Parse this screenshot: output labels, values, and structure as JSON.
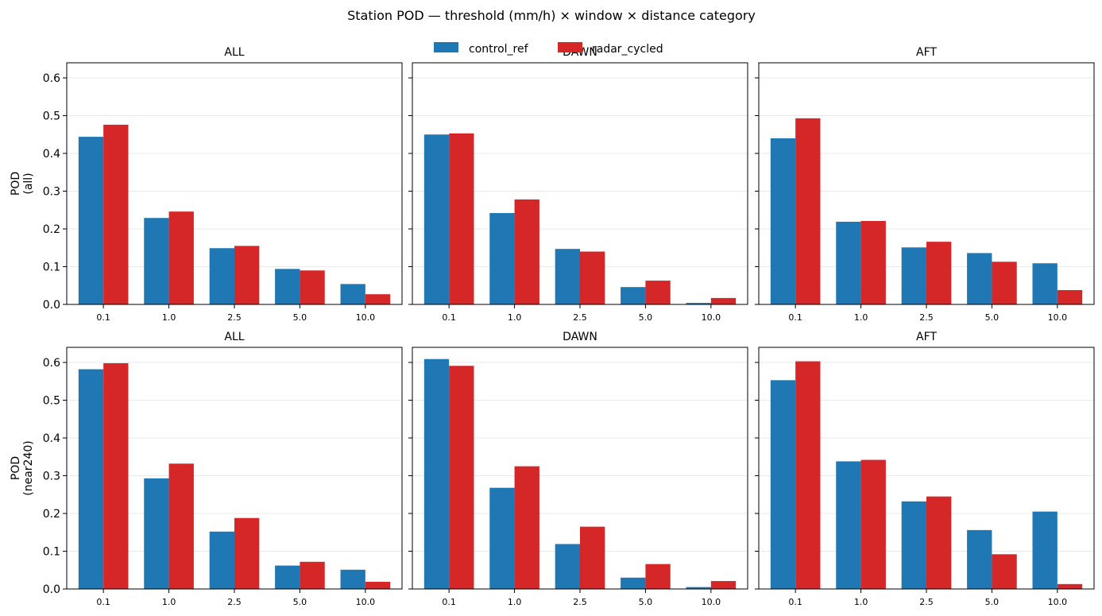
{
  "figure": {
    "title": "Station POD — threshold (mm/h) × window × distance category"
  },
  "legend": {
    "placement": "top-center",
    "items": [
      {
        "label": "control_ref",
        "color": "#1f77b4"
      },
      {
        "label": "radar_cycled",
        "color": "#d62728"
      }
    ]
  },
  "row_labels": [
    [
      "POD",
      "(all)"
    ],
    [
      "POD",
      "(near240)"
    ]
  ],
  "chart_data": [
    {
      "type": "bar",
      "title": "ALL",
      "categories": [
        "0.1",
        "1.0",
        "2.5",
        "5.0",
        "10.0"
      ],
      "series": [
        {
          "name": "control_ref",
          "values": [
            0.444,
            0.229,
            0.149,
            0.094,
            0.054
          ]
        },
        {
          "name": "radar_cycled",
          "values": [
            0.476,
            0.246,
            0.155,
            0.09,
            0.027
          ]
        }
      ],
      "ylim": [
        0,
        0.64
      ],
      "yticks": [
        "0.0",
        "0.1",
        "0.2",
        "0.3",
        "0.4",
        "0.5",
        "0.6"
      ],
      "grid": "y"
    },
    {
      "type": "bar",
      "title": "DAWN",
      "categories": [
        "0.1",
        "1.0",
        "2.5",
        "5.0",
        "10.0"
      ],
      "series": [
        {
          "name": "control_ref",
          "values": [
            0.45,
            0.242,
            0.147,
            0.046,
            0.004
          ]
        },
        {
          "name": "radar_cycled",
          "values": [
            0.453,
            0.278,
            0.14,
            0.063,
            0.017
          ]
        }
      ],
      "ylim": [
        0,
        0.64
      ],
      "grid": "y"
    },
    {
      "type": "bar",
      "title": "AFT",
      "categories": [
        "0.1",
        "1.0",
        "2.5",
        "5.0",
        "10.0"
      ],
      "series": [
        {
          "name": "control_ref",
          "values": [
            0.44,
            0.219,
            0.151,
            0.136,
            0.109
          ]
        },
        {
          "name": "radar_cycled",
          "values": [
            0.493,
            0.221,
            0.166,
            0.113,
            0.038
          ]
        }
      ],
      "ylim": [
        0,
        0.64
      ],
      "grid": "y"
    },
    {
      "type": "bar",
      "title": "ALL",
      "categories": [
        "0.1",
        "1.0",
        "2.5",
        "5.0",
        "10.0"
      ],
      "series": [
        {
          "name": "control_ref",
          "values": [
            0.582,
            0.293,
            0.152,
            0.062,
            0.051
          ]
        },
        {
          "name": "radar_cycled",
          "values": [
            0.598,
            0.332,
            0.188,
            0.072,
            0.019
          ]
        }
      ],
      "ylim": [
        0,
        0.64
      ],
      "yticks": [
        "0.0",
        "0.1",
        "0.2",
        "0.3",
        "0.4",
        "0.5",
        "0.6"
      ],
      "grid": "y"
    },
    {
      "type": "bar",
      "title": "DAWN",
      "categories": [
        "0.1",
        "1.0",
        "2.5",
        "5.0",
        "10.0"
      ],
      "series": [
        {
          "name": "control_ref",
          "values": [
            0.609,
            0.268,
            0.119,
            0.03,
            0.005
          ]
        },
        {
          "name": "radar_cycled",
          "values": [
            0.591,
            0.325,
            0.165,
            0.066,
            0.021
          ]
        }
      ],
      "ylim": [
        0,
        0.64
      ],
      "grid": "y"
    },
    {
      "type": "bar",
      "title": "AFT",
      "categories": [
        "0.1",
        "1.0",
        "2.5",
        "5.0",
        "10.0"
      ],
      "series": [
        {
          "name": "control_ref",
          "values": [
            0.553,
            0.338,
            0.232,
            0.156,
            0.205
          ]
        },
        {
          "name": "radar_cycled",
          "values": [
            0.603,
            0.342,
            0.245,
            0.092,
            0.013
          ]
        }
      ],
      "ylim": [
        0,
        0.64
      ],
      "grid": "y"
    }
  ]
}
